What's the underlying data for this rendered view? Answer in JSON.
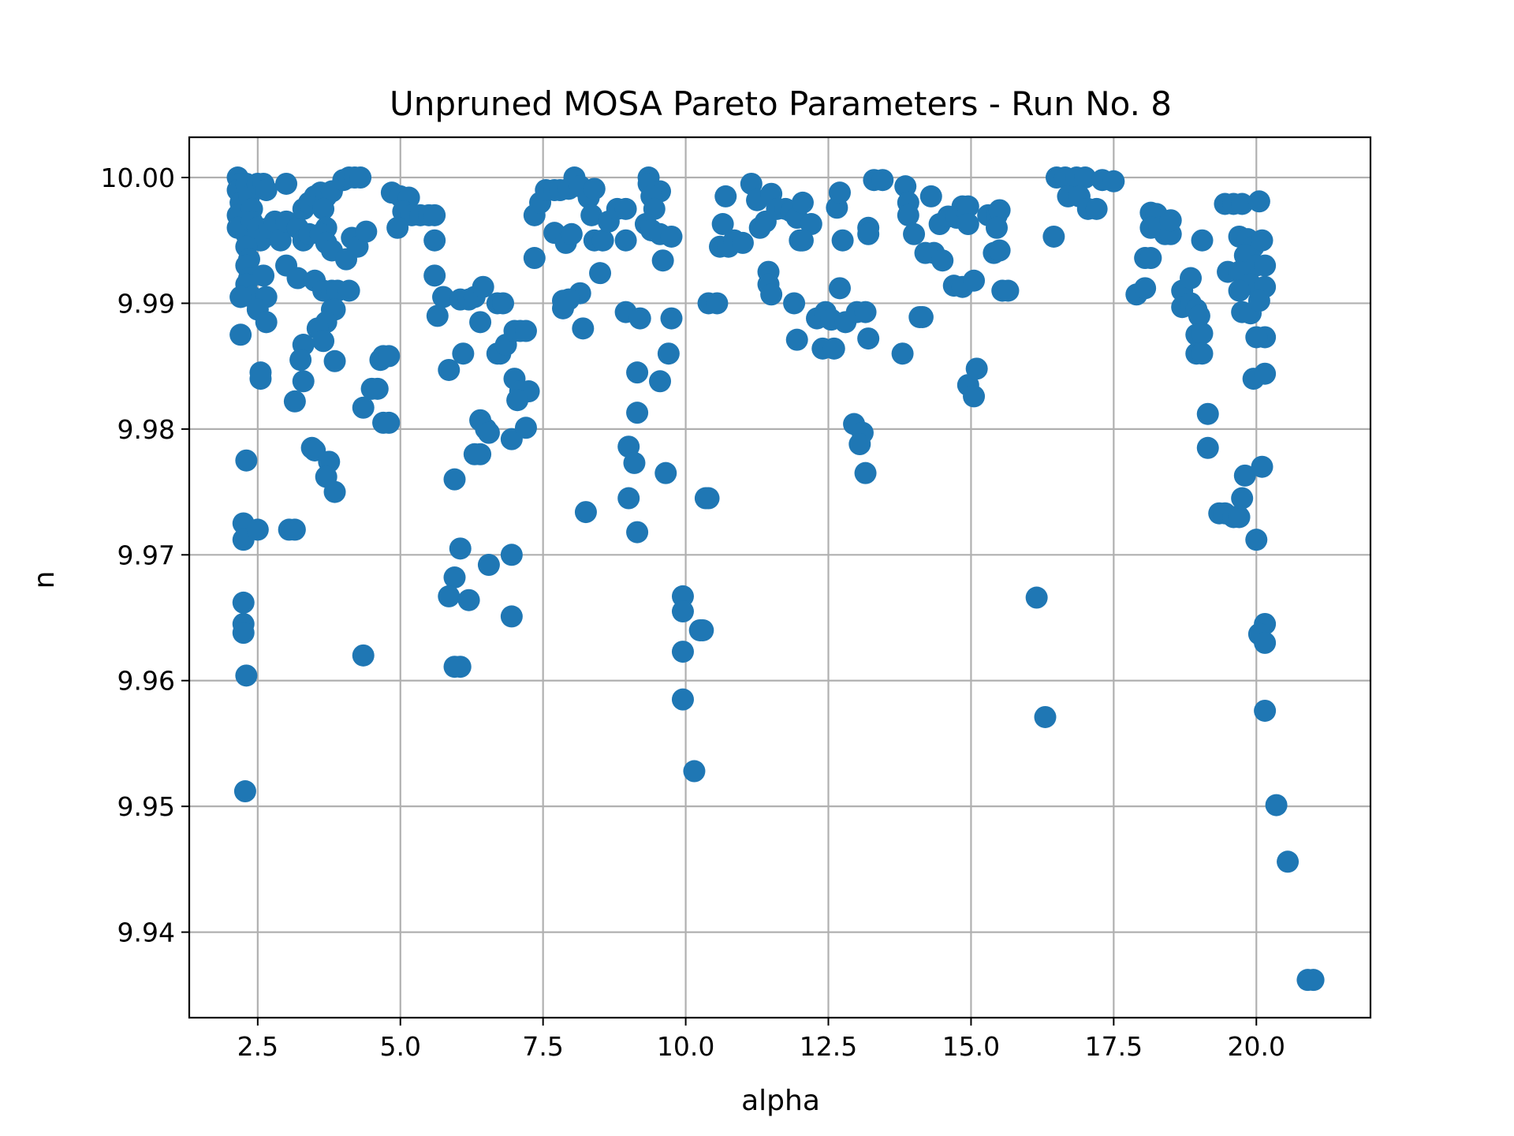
{
  "chart_data": {
    "type": "scatter",
    "title": "Unpruned MOSA Pareto Parameters - Run No. 8",
    "xlabel": "alpha",
    "ylabel": "n",
    "xlim": [
      1.3,
      22.0
    ],
    "ylim": [
      9.9332,
      10.0032
    ],
    "xticks": [
      2.5,
      5.0,
      7.5,
      10.0,
      12.5,
      15.0,
      17.5,
      20.0
    ],
    "xtick_labels": [
      "2.5",
      "5.0",
      "7.5",
      "10.0",
      "12.5",
      "15.0",
      "17.5",
      "20.0"
    ],
    "yticks": [
      9.94,
      9.95,
      9.96,
      9.97,
      9.98,
      9.99,
      10.0
    ],
    "ytick_labels": [
      "9.94",
      "9.95",
      "9.96",
      "9.97",
      "9.98",
      "9.99",
      "10.00"
    ],
    "grid": true,
    "marker_color": "#1f77b4",
    "points": [
      [
        2.15,
        10.0
      ],
      [
        2.2,
        9.9995
      ],
      [
        2.15,
        9.999
      ],
      [
        2.2,
        9.998
      ],
      [
        2.15,
        9.997
      ],
      [
        2.3,
        9.9995
      ],
      [
        2.35,
        9.9985
      ],
      [
        2.4,
        9.9975
      ],
      [
        2.5,
        9.9995
      ],
      [
        2.6,
        9.9995
      ],
      [
        2.65,
        9.999
      ],
      [
        2.15,
        9.996
      ],
      [
        2.3,
        9.9955
      ],
      [
        2.4,
        9.9965
      ],
      [
        2.5,
        9.996
      ],
      [
        2.55,
        9.995
      ],
      [
        2.7,
        9.996
      ],
      [
        2.8,
        9.9965
      ],
      [
        2.9,
        9.995
      ],
      [
        3.0,
        9.9995
      ],
      [
        2.3,
        9.9945
      ],
      [
        2.35,
        9.9935
      ],
      [
        2.3,
        9.993
      ],
      [
        2.35,
        9.992
      ],
      [
        2.6,
        9.9922
      ],
      [
        2.3,
        9.9915
      ],
      [
        2.4,
        9.9905
      ],
      [
        2.2,
        9.9905
      ],
      [
        2.65,
        9.9905
      ],
      [
        2.5,
        9.9895
      ],
      [
        2.65,
        9.9885
      ],
      [
        2.2,
        9.9875
      ],
      [
        2.55,
        9.9845
      ],
      [
        2.55,
        9.984
      ],
      [
        2.3,
        9.9775
      ],
      [
        2.25,
        9.9725
      ],
      [
        2.25,
        9.9712
      ],
      [
        2.5,
        9.972
      ],
      [
        2.25,
        9.9662
      ],
      [
        2.25,
        9.9645
      ],
      [
        2.25,
        9.9638
      ],
      [
        2.3,
        9.9604
      ],
      [
        2.28,
        9.9512
      ],
      [
        3.0,
        9.9965
      ],
      [
        3.2,
        9.996
      ],
      [
        3.3,
        9.9975
      ],
      [
        3.4,
        9.998
      ],
      [
        3.5,
        9.9985
      ],
      [
        3.6,
        9.9988
      ],
      [
        3.7,
        9.9985
      ],
      [
        3.8,
        9.9989
      ],
      [
        3.65,
        9.9975
      ],
      [
        3.7,
        9.996
      ],
      [
        3.3,
        9.995
      ],
      [
        3.4,
        9.9955
      ],
      [
        3.6,
        9.9955
      ],
      [
        3.7,
        9.9948
      ],
      [
        3.8,
        9.9942
      ],
      [
        4.0,
        9.9998
      ],
      [
        4.1,
        10.0
      ],
      [
        4.2,
        10.0
      ],
      [
        4.3,
        10.0
      ],
      [
        3.0,
        9.993
      ],
      [
        3.2,
        9.992
      ],
      [
        3.5,
        9.9918
      ],
      [
        3.65,
        9.991
      ],
      [
        3.8,
        9.991
      ],
      [
        3.9,
        9.991
      ],
      [
        4.05,
        9.9935
      ],
      [
        4.1,
        9.991
      ],
      [
        4.15,
        9.9952
      ],
      [
        4.25,
        9.9945
      ],
      [
        4.4,
        9.9957
      ],
      [
        3.8,
        9.9895
      ],
      [
        3.85,
        9.9895
      ],
      [
        3.7,
        9.9885
      ],
      [
        3.55,
        9.988
      ],
      [
        3.65,
        9.987
      ],
      [
        3.3,
        9.9867
      ],
      [
        3.25,
        9.9855
      ],
      [
        3.3,
        9.9838
      ],
      [
        3.15,
        9.9822
      ],
      [
        3.85,
        9.9854
      ],
      [
        3.45,
        9.9785
      ],
      [
        3.5,
        9.9783
      ],
      [
        3.75,
        9.9774
      ],
      [
        3.7,
        9.9762
      ],
      [
        3.85,
        9.975
      ],
      [
        3.05,
        9.972
      ],
      [
        3.15,
        9.972
      ],
      [
        4.35,
        9.9817
      ],
      [
        4.5,
        9.9832
      ],
      [
        4.6,
        9.9832
      ],
      [
        4.65,
        9.9855
      ],
      [
        4.7,
        9.9858
      ],
      [
        4.8,
        9.9858
      ],
      [
        4.7,
        9.9805
      ],
      [
        4.8,
        9.9805
      ],
      [
        4.35,
        9.962
      ],
      [
        4.85,
        9.9988
      ],
      [
        5.0,
        9.9985
      ],
      [
        5.15,
        9.9984
      ],
      [
        5.05,
        9.9973
      ],
      [
        5.2,
        9.997
      ],
      [
        5.35,
        9.997
      ],
      [
        5.5,
        9.997
      ],
      [
        5.6,
        9.997
      ],
      [
        4.95,
        9.996
      ],
      [
        5.6,
        9.995
      ],
      [
        5.6,
        9.9922
      ],
      [
        5.75,
        9.9905
      ],
      [
        5.65,
        9.989
      ],
      [
        5.85,
        9.9847
      ],
      [
        6.05,
        9.9903
      ],
      [
        6.2,
        9.9903
      ],
      [
        6.3,
        9.9905
      ],
      [
        6.45,
        9.9913
      ],
      [
        6.1,
        9.986
      ],
      [
        5.95,
        9.976
      ],
      [
        6.4,
        9.9885
      ],
      [
        6.7,
        9.986
      ],
      [
        6.75,
        9.986
      ],
      [
        6.85,
        9.9867
      ],
      [
        6.7,
        9.99
      ],
      [
        6.8,
        9.99
      ],
      [
        7.0,
        9.9878
      ],
      [
        7.1,
        9.9878
      ],
      [
        7.2,
        9.9878
      ],
      [
        7.0,
        9.984
      ],
      [
        7.1,
        9.983
      ],
      [
        7.25,
        9.983
      ],
      [
        7.05,
        9.9823
      ],
      [
        6.4,
        9.9807
      ],
      [
        6.5,
        9.98
      ],
      [
        6.55,
        9.9797
      ],
      [
        6.3,
        9.978
      ],
      [
        6.4,
        9.978
      ],
      [
        6.95,
        9.9792
      ],
      [
        7.2,
        9.9801
      ],
      [
        6.05,
        9.9705
      ],
      [
        6.55,
        9.9692
      ],
      [
        6.95,
        9.97
      ],
      [
        5.95,
        9.9682
      ],
      [
        5.85,
        9.9667
      ],
      [
        6.2,
        9.9664
      ],
      [
        6.95,
        9.9651
      ],
      [
        5.95,
        9.9611
      ],
      [
        6.05,
        9.9611
      ],
      [
        7.35,
        9.9936
      ],
      [
        7.35,
        9.997
      ],
      [
        7.45,
        9.998
      ],
      [
        7.55,
        9.999
      ],
      [
        7.7,
        9.999
      ],
      [
        7.8,
        9.999
      ],
      [
        7.95,
        9.9991
      ],
      [
        8.05,
        10.0
      ],
      [
        8.15,
        9.9993
      ],
      [
        8.3,
        9.9984
      ],
      [
        8.4,
        9.9991
      ],
      [
        7.7,
        9.9956
      ],
      [
        7.9,
        9.9948
      ],
      [
        8.0,
        9.9955
      ],
      [
        8.35,
        9.997
      ],
      [
        8.4,
        9.995
      ],
      [
        8.55,
        9.995
      ],
      [
        8.65,
        9.9965
      ],
      [
        8.8,
        9.9975
      ],
      [
        8.95,
        9.9975
      ],
      [
        8.95,
        9.995
      ],
      [
        8.5,
        9.9924
      ],
      [
        8.15,
        9.9908
      ],
      [
        7.85,
        9.9902
      ],
      [
        7.95,
        9.9903
      ],
      [
        7.85,
        9.9896
      ],
      [
        8.2,
        9.988
      ],
      [
        8.95,
        9.9893
      ],
      [
        9.2,
        9.9888
      ],
      [
        9.35,
        10.0
      ],
      [
        9.35,
        9.9995
      ],
      [
        9.55,
        9.9989
      ],
      [
        9.4,
        9.9985
      ],
      [
        9.45,
        9.9975
      ],
      [
        9.3,
        9.9963
      ],
      [
        9.4,
        9.9958
      ],
      [
        9.55,
        9.9955
      ],
      [
        9.75,
        9.9953
      ],
      [
        9.6,
        9.9934
      ],
      [
        9.75,
        9.9888
      ],
      [
        9.7,
        9.986
      ],
      [
        9.15,
        9.9845
      ],
      [
        9.55,
        9.9838
      ],
      [
        9.15,
        9.9813
      ],
      [
        9.0,
        9.9786
      ],
      [
        9.1,
        9.9773
      ],
      [
        9.65,
        9.9765
      ],
      [
        9.0,
        9.9745
      ],
      [
        9.15,
        9.9718
      ],
      [
        8.25,
        9.9734
      ],
      [
        9.95,
        9.9667
      ],
      [
        9.95,
        9.9655
      ],
      [
        10.25,
        9.964
      ],
      [
        10.3,
        9.964
      ],
      [
        9.95,
        9.9623
      ],
      [
        9.95,
        9.9585
      ],
      [
        10.15,
        9.9528
      ],
      [
        10.35,
        9.9745
      ],
      [
        10.4,
        9.9745
      ],
      [
        10.4,
        9.99
      ],
      [
        10.55,
        9.99
      ],
      [
        10.6,
        9.9945
      ],
      [
        10.75,
        9.9945
      ],
      [
        10.65,
        9.9963
      ],
      [
        10.7,
        9.9985
      ],
      [
        10.85,
        9.995
      ],
      [
        11.0,
        9.9948
      ],
      [
        11.15,
        9.9995
      ],
      [
        11.25,
        9.9982
      ],
      [
        11.3,
        9.996
      ],
      [
        11.4,
        9.9965
      ],
      [
        11.45,
        9.9925
      ],
      [
        11.45,
        9.9915
      ],
      [
        11.5,
        9.9907
      ],
      [
        11.5,
        9.9987
      ],
      [
        11.6,
        9.9975
      ],
      [
        11.75,
        9.9975
      ],
      [
        11.85,
        9.9973
      ],
      [
        11.95,
        9.9968
      ],
      [
        12.05,
        9.998
      ],
      [
        12.2,
        9.9963
      ],
      [
        12.0,
        9.995
      ],
      [
        12.05,
        9.995
      ],
      [
        11.9,
        9.99
      ],
      [
        11.95,
        9.9871
      ],
      [
        12.3,
        9.9888
      ],
      [
        12.45,
        9.9893
      ],
      [
        12.55,
        9.9887
      ],
      [
        12.4,
        9.9864
      ],
      [
        12.6,
        9.9864
      ],
      [
        12.65,
        9.9976
      ],
      [
        12.7,
        9.9988
      ],
      [
        12.75,
        9.995
      ],
      [
        12.7,
        9.9912
      ],
      [
        12.8,
        9.9885
      ],
      [
        12.95,
        9.9804
      ],
      [
        13.1,
        9.9797
      ],
      [
        13.05,
        9.9788
      ],
      [
        13.15,
        9.9765
      ],
      [
        13.2,
        9.9872
      ],
      [
        13.0,
        9.9893
      ],
      [
        13.15,
        9.9893
      ],
      [
        13.2,
        9.996
      ],
      [
        13.2,
        9.9955
      ],
      [
        13.3,
        9.9998
      ],
      [
        13.45,
        9.9998
      ],
      [
        13.85,
        9.9993
      ],
      [
        13.9,
        9.998
      ],
      [
        13.9,
        9.997
      ],
      [
        14.0,
        9.9955
      ],
      [
        13.8,
        9.986
      ],
      [
        14.1,
        9.9889
      ],
      [
        14.15,
        9.9889
      ],
      [
        14.2,
        9.994
      ],
      [
        14.35,
        9.994
      ],
      [
        14.5,
        9.9934
      ],
      [
        14.3,
        9.9985
      ],
      [
        14.45,
        9.9963
      ],
      [
        14.6,
        9.9969
      ],
      [
        14.75,
        9.9968
      ],
      [
        14.85,
        9.9977
      ],
      [
        14.95,
        9.9977
      ],
      [
        14.95,
        9.9963
      ],
      [
        14.7,
        9.9914
      ],
      [
        14.85,
        9.9913
      ],
      [
        15.05,
        9.9918
      ],
      [
        14.95,
        9.9835
      ],
      [
        15.05,
        9.9826
      ],
      [
        15.1,
        9.9848
      ],
      [
        15.3,
        9.997
      ],
      [
        15.45,
        9.997
      ],
      [
        15.5,
        9.9974
      ],
      [
        15.45,
        9.996
      ],
      [
        15.4,
        9.994
      ],
      [
        15.5,
        9.9942
      ],
      [
        15.55,
        9.991
      ],
      [
        15.65,
        9.991
      ],
      [
        16.15,
        9.9666
      ],
      [
        16.3,
        9.9571
      ],
      [
        16.45,
        9.9953
      ],
      [
        16.5,
        10.0
      ],
      [
        16.65,
        10.0
      ],
      [
        16.85,
        10.0
      ],
      [
        17.0,
        10.0
      ],
      [
        16.7,
        9.9985
      ],
      [
        16.9,
        9.9985
      ],
      [
        17.05,
        9.9975
      ],
      [
        17.2,
        9.9975
      ],
      [
        17.3,
        9.9998
      ],
      [
        17.5,
        9.9997
      ],
      [
        17.9,
        9.9907
      ],
      [
        18.05,
        9.9912
      ],
      [
        18.05,
        9.9936
      ],
      [
        18.15,
        9.9936
      ],
      [
        18.15,
        9.9972
      ],
      [
        18.25,
        9.9971
      ],
      [
        18.15,
        9.996
      ],
      [
        18.3,
        9.996
      ],
      [
        18.4,
        9.9955
      ],
      [
        18.5,
        9.9955
      ],
      [
        18.5,
        9.9966
      ],
      [
        18.7,
        9.991
      ],
      [
        18.85,
        9.992
      ],
      [
        18.7,
        9.9897
      ],
      [
        18.85,
        9.99
      ],
      [
        18.95,
        9.9895
      ],
      [
        19.0,
        9.989
      ],
      [
        18.95,
        9.9875
      ],
      [
        19.05,
        9.9876
      ],
      [
        18.95,
        9.986
      ],
      [
        19.05,
        9.986
      ],
      [
        19.05,
        9.995
      ],
      [
        19.15,
        9.9812
      ],
      [
        19.15,
        9.9785
      ],
      [
        19.35,
        9.9733
      ],
      [
        19.45,
        9.9733
      ],
      [
        19.6,
        9.973
      ],
      [
        19.7,
        9.973
      ],
      [
        19.75,
        9.9745
      ],
      [
        19.8,
        9.9763
      ],
      [
        19.45,
        9.9979
      ],
      [
        19.6,
        9.9979
      ],
      [
        19.75,
        9.9979
      ],
      [
        20.05,
        9.9981
      ],
      [
        19.7,
        9.9953
      ],
      [
        19.85,
        9.9951
      ],
      [
        19.95,
        9.9945
      ],
      [
        20.1,
        9.995
      ],
      [
        19.8,
        9.9938
      ],
      [
        20.0,
        9.993
      ],
      [
        20.15,
        9.993
      ],
      [
        19.5,
        9.9925
      ],
      [
        19.7,
        9.9925
      ],
      [
        19.9,
        9.9915
      ],
      [
        20.05,
        9.9912
      ],
      [
        20.15,
        9.9913
      ],
      [
        19.7,
        9.991
      ],
      [
        19.75,
        9.9893
      ],
      [
        19.9,
        9.9892
      ],
      [
        20.05,
        9.9902
      ],
      [
        20.15,
        9.9873
      ],
      [
        20.0,
        9.9873
      ],
      [
        19.95,
        9.984
      ],
      [
        20.15,
        9.9844
      ],
      [
        20.1,
        9.977
      ],
      [
        20.0,
        9.9712
      ],
      [
        20.15,
        9.9645
      ],
      [
        20.05,
        9.9637
      ],
      [
        20.15,
        9.963
      ],
      [
        20.15,
        9.9576
      ],
      [
        20.35,
        9.9501
      ],
      [
        20.55,
        9.9456
      ],
      [
        20.9,
        9.9362
      ],
      [
        21.0,
        9.9362
      ]
    ]
  }
}
